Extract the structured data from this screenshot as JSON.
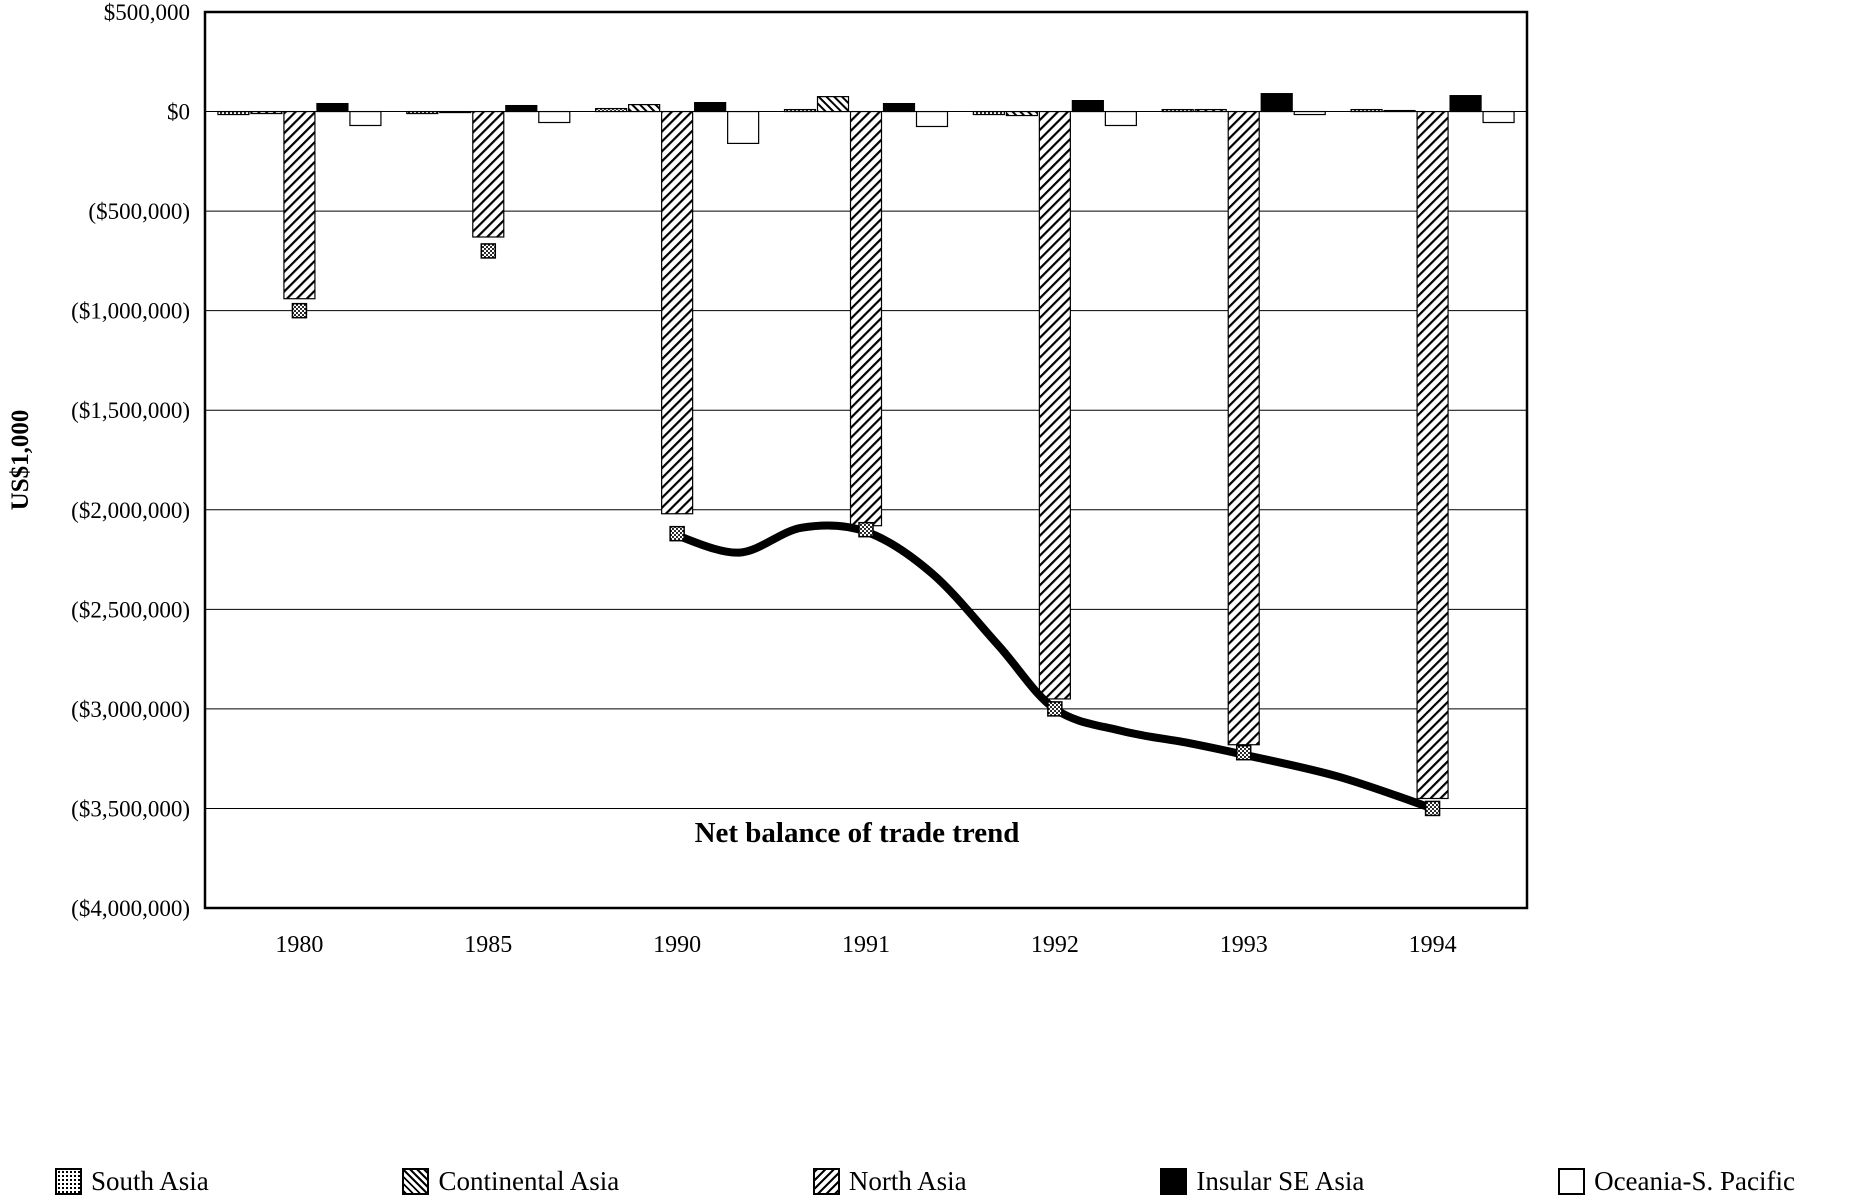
{
  "page": {
    "background": "#ffffff",
    "ink": "#000000"
  },
  "chart_data": {
    "type": "bar",
    "title": "",
    "ylabel": "US$1,000",
    "xlabel": "",
    "annotation": "Net balance of trade trend",
    "grid": "horizontal",
    "legend_position": "bottom",
    "categories": [
      "1980",
      "1985",
      "1990",
      "1991",
      "1992",
      "1993",
      "1994"
    ],
    "ylim": [
      -4000000,
      500000
    ],
    "y_ticks": [
      500000,
      0,
      -500000,
      -1000000,
      -1500000,
      -2000000,
      -2500000,
      -3000000,
      -3500000,
      -4000000
    ],
    "y_tick_labels": [
      "$500,000",
      "$0",
      "($500,000)",
      "($1,000,000)",
      "($1,500,000)",
      "($2,000,000)",
      "($2,500,000)",
      "($3,000,000)",
      "($3,500,000)",
      "($4,000,000)"
    ],
    "series": [
      {
        "name": "South Asia",
        "pattern": "dots",
        "values": [
          -15000,
          -10000,
          15000,
          10000,
          -15000,
          10000,
          10000
        ]
      },
      {
        "name": "Continental Asia",
        "pattern": "hatch-dense",
        "values": [
          -10000,
          -5000,
          35000,
          75000,
          -20000,
          10000,
          5000
        ]
      },
      {
        "name": "North Asia",
        "pattern": "hatch",
        "values": [
          -940000,
          -630000,
          -2020000,
          -2080000,
          -2950000,
          -3180000,
          -3450000
        ]
      },
      {
        "name": "Insular SE Asia",
        "pattern": "solid",
        "values": [
          40000,
          30000,
          45000,
          40000,
          55000,
          90000,
          80000
        ]
      },
      {
        "name": "Oceania-S. Pacific",
        "pattern": "white",
        "values": [
          -70000,
          -55000,
          -160000,
          -75000,
          -70000,
          -15000,
          -55000
        ]
      }
    ],
    "trend": {
      "label": "Net balance of trade trend",
      "values": [
        -1000000,
        -700000,
        -2120000,
        -2100000,
        -3000000,
        -3220000,
        -3500000
      ],
      "line_drawn_from_category": "1990",
      "curve": [
        [
          2,
          -2130000
        ],
        [
          2.33,
          -2215000
        ],
        [
          2.66,
          -2090000
        ],
        [
          3,
          -2110000
        ],
        [
          3.35,
          -2320000
        ],
        [
          3.7,
          -2680000
        ],
        [
          4,
          -3000000
        ],
        [
          4.35,
          -3110000
        ],
        [
          4.7,
          -3170000
        ],
        [
          5,
          -3230000
        ],
        [
          5.5,
          -3340000
        ],
        [
          6,
          -3500000
        ]
      ],
      "color": "#000000"
    },
    "colors": {
      "ink": "#000000",
      "background": "#ffffff"
    }
  }
}
